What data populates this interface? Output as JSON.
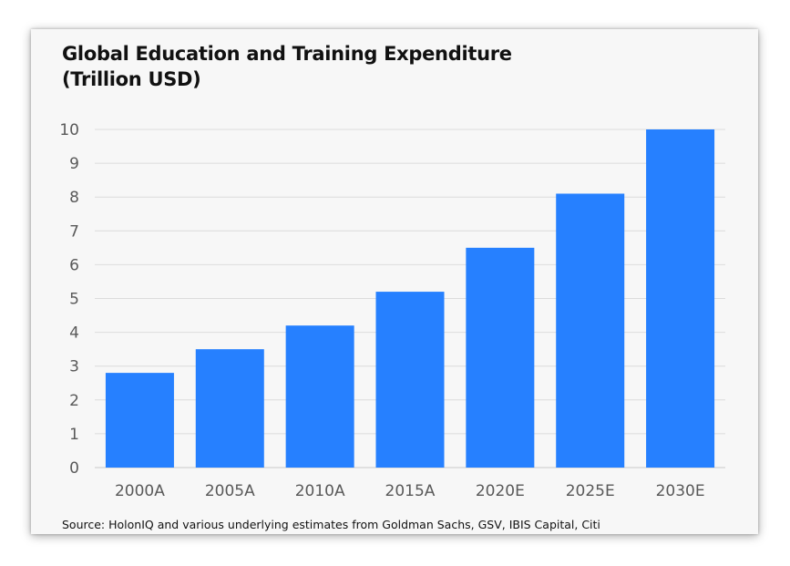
{
  "chart_data": {
    "type": "bar",
    "title_line1": "Global Education and Training Expenditure",
    "title_line2": "(Trillion USD)",
    "xlabel": "",
    "ylabel": "",
    "categories": [
      "2000A",
      "2005A",
      "2010A",
      "2015A",
      "2020E",
      "2025E",
      "2030E"
    ],
    "values": [
      2.8,
      3.5,
      4.2,
      5.2,
      6.5,
      8.1,
      10
    ],
    "ylim": [
      0,
      10
    ],
    "yticks": [
      "0",
      "1",
      "2",
      "3",
      "4",
      "5",
      "6",
      "7",
      "8",
      "9",
      "10"
    ],
    "grid": true,
    "legend": "none",
    "bar_color": "#2680ff",
    "source": "Source: HolonIQ and various underlying estimates from Goldman Sachs, GSV, IBIS Capital, Citi"
  }
}
